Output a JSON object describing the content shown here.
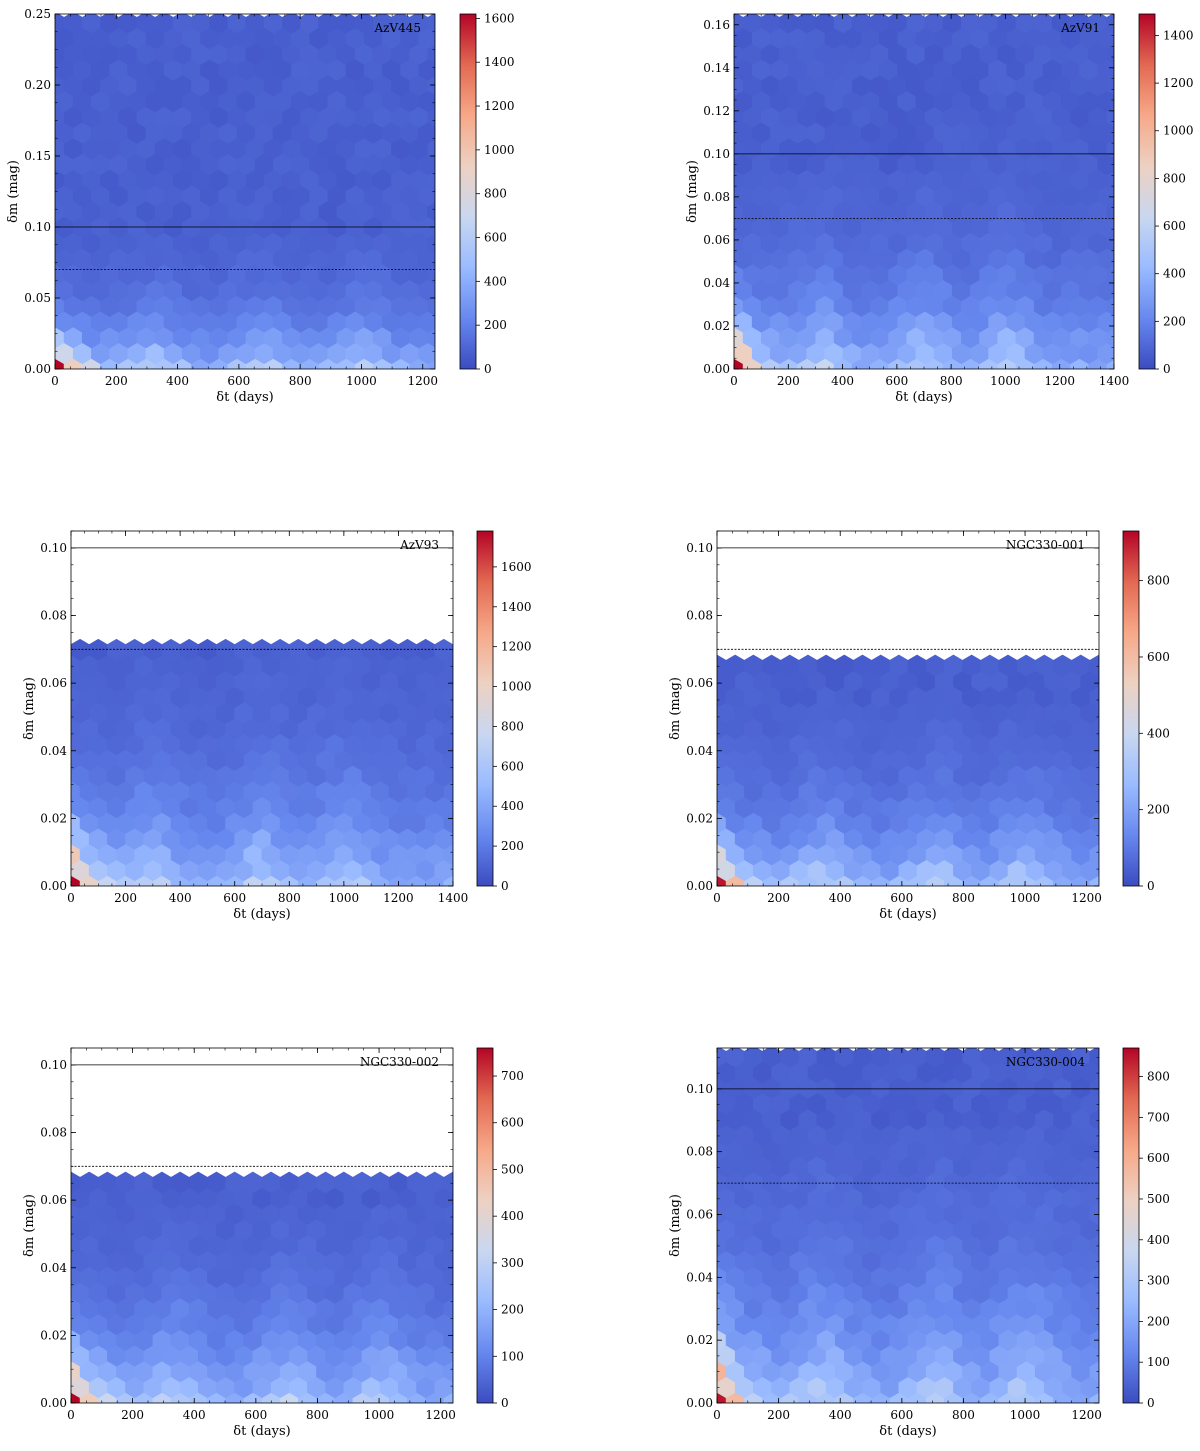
{
  "chart_data": [
    {
      "type": "heatmap",
      "subtype": "hexbin",
      "label": "AzV445",
      "xlabel": "δt (days)",
      "ylabel": "δm (mag)",
      "xlim": [
        0,
        1240
      ],
      "ylim": [
        0,
        0.25
      ],
      "xticks": [
        0,
        200,
        400,
        600,
        800,
        1000,
        1200
      ],
      "xtick_labels": [
        "0",
        "200",
        "400",
        "600",
        "800",
        "1000",
        "1200"
      ],
      "yticks": [
        0,
        0.05,
        0.1,
        0.15,
        0.2,
        0.25
      ],
      "ytick_labels": [
        "0.00",
        "0.05",
        "0.10",
        "0.15",
        "0.20",
        "0.25"
      ],
      "data_ymax": 0.25,
      "solid_line": 0.1,
      "dashed_line": 0.07,
      "colorbar_max": 1620,
      "colorbar_ticks": [
        0,
        200,
        400,
        600,
        800,
        1000,
        1200,
        1400,
        1600
      ],
      "colorbar_tick_labels": [
        "0",
        "200",
        "400",
        "600",
        "800",
        "1000",
        "1200",
        "1400",
        "1600"
      ],
      "peak_count": 1620,
      "low_band_mag": 0.03,
      "hump_centres_days": [
        320,
        680,
        1000
      ]
    },
    {
      "type": "heatmap",
      "subtype": "hexbin",
      "label": "AzV91",
      "xlabel": "δt (days)",
      "ylabel": "δm (mag)",
      "xlim": [
        0,
        1400
      ],
      "ylim": [
        0,
        0.165
      ],
      "xticks": [
        0,
        200,
        400,
        600,
        800,
        1000,
        1200,
        1400
      ],
      "xtick_labels": [
        "0",
        "200",
        "400",
        "600",
        "800",
        "1000",
        "1200",
        "1400"
      ],
      "yticks": [
        0,
        0.02,
        0.04,
        0.06,
        0.08,
        0.1,
        0.12,
        0.14,
        0.16
      ],
      "ytick_labels": [
        "0.00",
        "0.02",
        "0.04",
        "0.06",
        "0.08",
        "0.10",
        "0.12",
        "0.14",
        "0.16"
      ],
      "data_ymax": 0.165,
      "solid_line": 0.1,
      "dashed_line": 0.07,
      "colorbar_max": 1490,
      "colorbar_ticks": [
        0,
        200,
        400,
        600,
        800,
        1000,
        1200,
        1400
      ],
      "colorbar_tick_labels": [
        "0",
        "200",
        "400",
        "600",
        "800",
        "1000",
        "1200",
        "1400"
      ],
      "peak_count": 1490,
      "low_band_mag": 0.03,
      "hump_centres_days": [
        320,
        700,
        1000
      ]
    },
    {
      "type": "heatmap",
      "subtype": "hexbin",
      "label": "AzV93",
      "xlabel": "δt (days)",
      "ylabel": "δm (mag)",
      "xlim": [
        0,
        1400
      ],
      "ylim": [
        0,
        0.105
      ],
      "xticks": [
        0,
        200,
        400,
        600,
        800,
        1000,
        1200,
        1400
      ],
      "xtick_labels": [
        "0",
        "200",
        "400",
        "600",
        "800",
        "1000",
        "1200",
        "1400"
      ],
      "yticks": [
        0,
        0.02,
        0.04,
        0.06,
        0.08,
        0.1
      ],
      "ytick_labels": [
        "0.00",
        "0.02",
        "0.04",
        "0.06",
        "0.08",
        "0.10"
      ],
      "data_ymax": 0.0745,
      "solid_line": 0.1,
      "dashed_line": 0.07,
      "colorbar_max": 1780,
      "colorbar_ticks": [
        0,
        200,
        400,
        600,
        800,
        1000,
        1200,
        1400,
        1600
      ],
      "colorbar_tick_labels": [
        "0",
        "200",
        "400",
        "600",
        "800",
        "1000",
        "1200",
        "1400",
        "1600"
      ],
      "peak_count": 1780,
      "low_band_mag": 0.022,
      "hump_centres_days": [
        300,
        700,
        1000
      ]
    },
    {
      "type": "heatmap",
      "subtype": "hexbin",
      "label": "NGC330-001",
      "xlabel": "δt (days)",
      "ylabel": "δm (mag)",
      "xlim": [
        0,
        1240
      ],
      "ylim": [
        0,
        0.105
      ],
      "xticks": [
        0,
        200,
        400,
        600,
        800,
        1000,
        1200
      ],
      "xtick_labels": [
        "0",
        "200",
        "400",
        "600",
        "800",
        "1000",
        "1200"
      ],
      "yticks": [
        0,
        0.02,
        0.04,
        0.06,
        0.08,
        0.1
      ],
      "ytick_labels": [
        "0.00",
        "0.02",
        "0.04",
        "0.06",
        "0.08",
        "0.10"
      ],
      "data_ymax": 0.066,
      "solid_line": 0.1,
      "dashed_line": 0.07,
      "colorbar_max": 930,
      "colorbar_ticks": [
        0,
        200,
        400,
        600,
        800
      ],
      "colorbar_tick_labels": [
        "0",
        "200",
        "400",
        "600",
        "800"
      ],
      "peak_count": 930,
      "low_band_mag": 0.018,
      "hump_centres_days": [
        340,
        700,
        1000
      ]
    },
    {
      "type": "heatmap",
      "subtype": "hexbin",
      "label": "NGC330-002",
      "xlabel": "δt (days)",
      "ylabel": "δm (mag)",
      "xlim": [
        0,
        1240
      ],
      "ylim": [
        0,
        0.105
      ],
      "xticks": [
        0,
        200,
        400,
        600,
        800,
        1000,
        1200
      ],
      "xtick_labels": [
        "0",
        "200",
        "400",
        "600",
        "800",
        "1000",
        "1200"
      ],
      "yticks": [
        0,
        0.02,
        0.04,
        0.06,
        0.08,
        0.1
      ],
      "ytick_labels": [
        "0.00",
        "0.02",
        "0.04",
        "0.06",
        "0.08",
        "0.10"
      ],
      "data_ymax": 0.0655,
      "solid_line": 0.1,
      "dashed_line": 0.07,
      "colorbar_max": 760,
      "colorbar_ticks": [
        0,
        100,
        200,
        300,
        400,
        500,
        600,
        700
      ],
      "colorbar_tick_labels": [
        "0",
        "100",
        "200",
        "300",
        "400",
        "500",
        "600",
        "700"
      ],
      "peak_count": 760,
      "low_band_mag": 0.02,
      "hump_centres_days": [
        330,
        700,
        1000
      ]
    },
    {
      "type": "heatmap",
      "subtype": "hexbin",
      "label": "NGC330-004",
      "xlabel": "δt (days)",
      "ylabel": "δm (mag)",
      "xlim": [
        0,
        1240
      ],
      "ylim": [
        0,
        0.113
      ],
      "xticks": [
        0,
        200,
        400,
        600,
        800,
        1000,
        1200
      ],
      "xtick_labels": [
        "0",
        "200",
        "400",
        "600",
        "800",
        "1000",
        "1200"
      ],
      "yticks": [
        0,
        0.02,
        0.04,
        0.06,
        0.08,
        0.1
      ],
      "ytick_labels": [
        "0.00",
        "0.02",
        "0.04",
        "0.06",
        "0.08",
        "0.10"
      ],
      "data_ymax": 0.113,
      "solid_line": 0.1,
      "dashed_line": 0.07,
      "colorbar_max": 870,
      "colorbar_ticks": [
        0,
        100,
        200,
        300,
        400,
        500,
        600,
        700,
        800
      ],
      "colorbar_tick_labels": [
        "0",
        "100",
        "200",
        "300",
        "400",
        "500",
        "600",
        "700",
        "800"
      ],
      "peak_count": 870,
      "low_band_mag": 0.03,
      "hump_centres_days": [
        340,
        700,
        1000
      ]
    }
  ],
  "colormap": {
    "name": "coolwarm",
    "stops": [
      "#3b4cc0",
      "#6788ee",
      "#9abbff",
      "#c9d7f0",
      "#edd1c2",
      "#f7a889",
      "#e26952",
      "#b40426"
    ]
  }
}
